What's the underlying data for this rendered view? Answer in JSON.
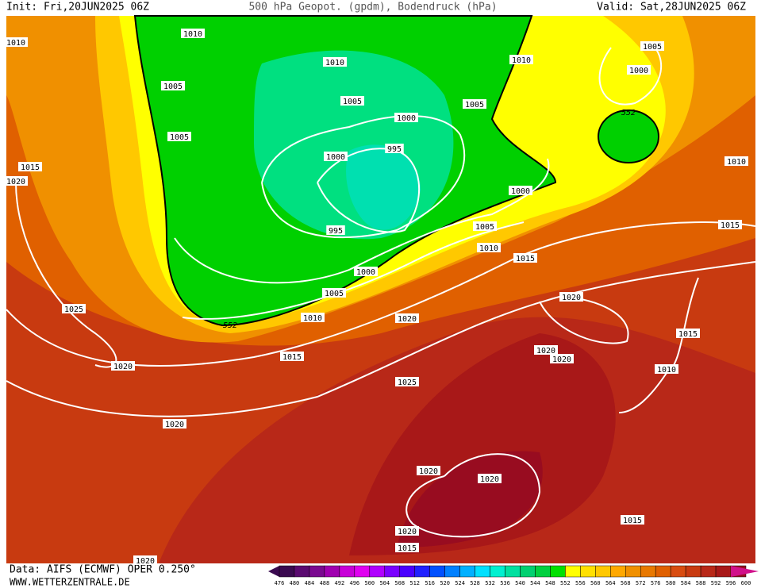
{
  "header": {
    "init": "Init: Fri,20JUN2025 06Z",
    "title": "500 hPa Geopot. (gpdm), Bodendruck (hPa)",
    "valid": "Valid: Sat,28JUN2025 06Z"
  },
  "footer": {
    "source": "Data: AIFS (ECMWF) OPER 0.250°",
    "site": "WWW.WETTERZENTRALE.DE"
  },
  "height_labels": [
    "552",
    "552"
  ],
  "isobar_labels": [
    "1010",
    "1010",
    "1005",
    "1010",
    "1005",
    "1005",
    "1010",
    "1005",
    "1000",
    "1000",
    "995",
    "1000",
    "1005",
    "1015",
    "1020",
    "1000",
    "995",
    "1005",
    "1010",
    "1015",
    "1015",
    "1010",
    "1000",
    "1005",
    "1010",
    "1015",
    "1020",
    "1025",
    "1020",
    "1020",
    "1020",
    "1020",
    "1015",
    "1010",
    "1025",
    "1020",
    "1020",
    "1020",
    "1015",
    "1020",
    "1015",
    "1020"
  ],
  "colorbar": {
    "labels": [
      "476",
      "480",
      "484",
      "488",
      "492",
      "496",
      "500",
      "504",
      "508",
      "512",
      "516",
      "520",
      "524",
      "528",
      "532",
      "536",
      "540",
      "544",
      "548",
      "552",
      "556",
      "560",
      "564",
      "568",
      "572",
      "576",
      "580",
      "584",
      "588",
      "592",
      "596",
      "600"
    ],
    "colors": [
      "#3a0a50",
      "#5a0a70",
      "#7a0a90",
      "#a000b0",
      "#c800d8",
      "#e000f0",
      "#b000ff",
      "#7a00ff",
      "#4a00ff",
      "#2020ff",
      "#0050ff",
      "#0080ff",
      "#00b0ff",
      "#00e0ff",
      "#00f0d0",
      "#00e0a0",
      "#00d070",
      "#00d040",
      "#00e000",
      "#ffff00",
      "#ffe000",
      "#ffc800",
      "#ffa800",
      "#f09000",
      "#e87800",
      "#e06000",
      "#d84c10",
      "#c83a10",
      "#b82818",
      "#a81818",
      "#980c20",
      "#d0108a"
    ]
  }
}
